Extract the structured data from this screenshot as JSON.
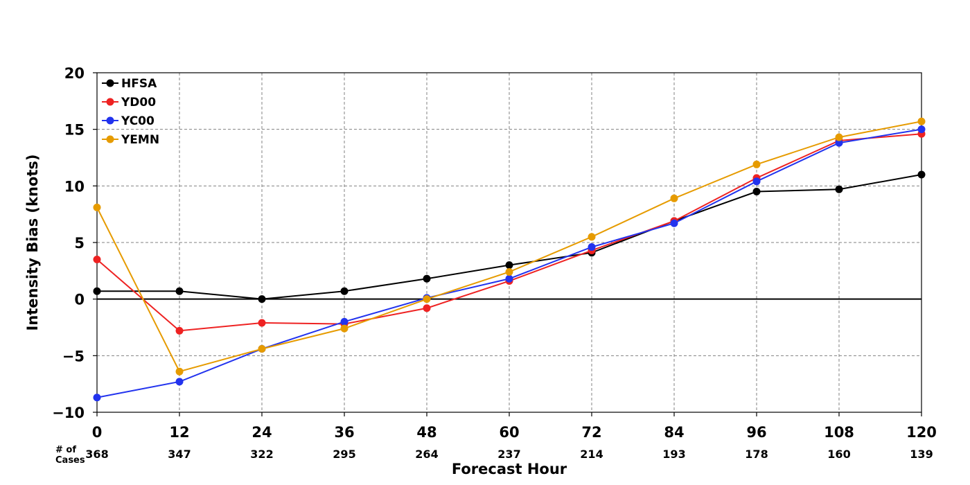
{
  "chart_data": {
    "type": "line",
    "xlabel": "Forecast Hour",
    "ylabel": "Intensity Bias (knots)",
    "x": [
      0,
      12,
      24,
      36,
      48,
      60,
      72,
      84,
      96,
      108,
      120
    ],
    "xlim": [
      0,
      120
    ],
    "ylim": [
      -10,
      20
    ],
    "xticks": [
      "0",
      "12",
      "24",
      "36",
      "48",
      "60",
      "72",
      "84",
      "96",
      "108",
      "120"
    ],
    "yticks": [
      {
        "value": 20,
        "label": "20"
      },
      {
        "value": 15,
        "label": "15"
      },
      {
        "value": 10,
        "label": "10"
      },
      {
        "value": 5,
        "label": "5"
      },
      {
        "value": 0,
        "label": "0"
      },
      {
        "value": -5,
        "label": "−5"
      },
      {
        "value": -10,
        "label": "−10"
      }
    ],
    "grid": true,
    "legend_position": "top-left",
    "cases_label": [
      "# of",
      "Cases"
    ],
    "cases": [
      "368",
      "347",
      "322",
      "295",
      "264",
      "237",
      "214",
      "193",
      "178",
      "160",
      "139"
    ],
    "series": [
      {
        "name": "HFSA",
        "color": "#000000",
        "values": [
          0.7,
          0.7,
          0.0,
          0.7,
          1.8,
          3.0,
          4.1,
          6.9,
          9.5,
          9.7,
          11.0
        ]
      },
      {
        "name": "YD00",
        "color": "#ee2222",
        "values": [
          3.5,
          -2.8,
          -2.1,
          -2.2,
          -0.8,
          1.6,
          4.3,
          6.9,
          10.7,
          14.0,
          14.6
        ]
      },
      {
        "name": "YC00",
        "color": "#2233ee",
        "values": [
          -8.7,
          -7.3,
          -4.4,
          -2.0,
          0.1,
          1.8,
          4.6,
          6.7,
          10.4,
          13.8,
          15.0
        ]
      },
      {
        "name": "YEMN",
        "color": "#e69b00",
        "values": [
          8.1,
          -6.4,
          -4.4,
          -2.6,
          0.0,
          2.4,
          5.5,
          8.9,
          11.9,
          14.3,
          15.7
        ]
      }
    ]
  }
}
